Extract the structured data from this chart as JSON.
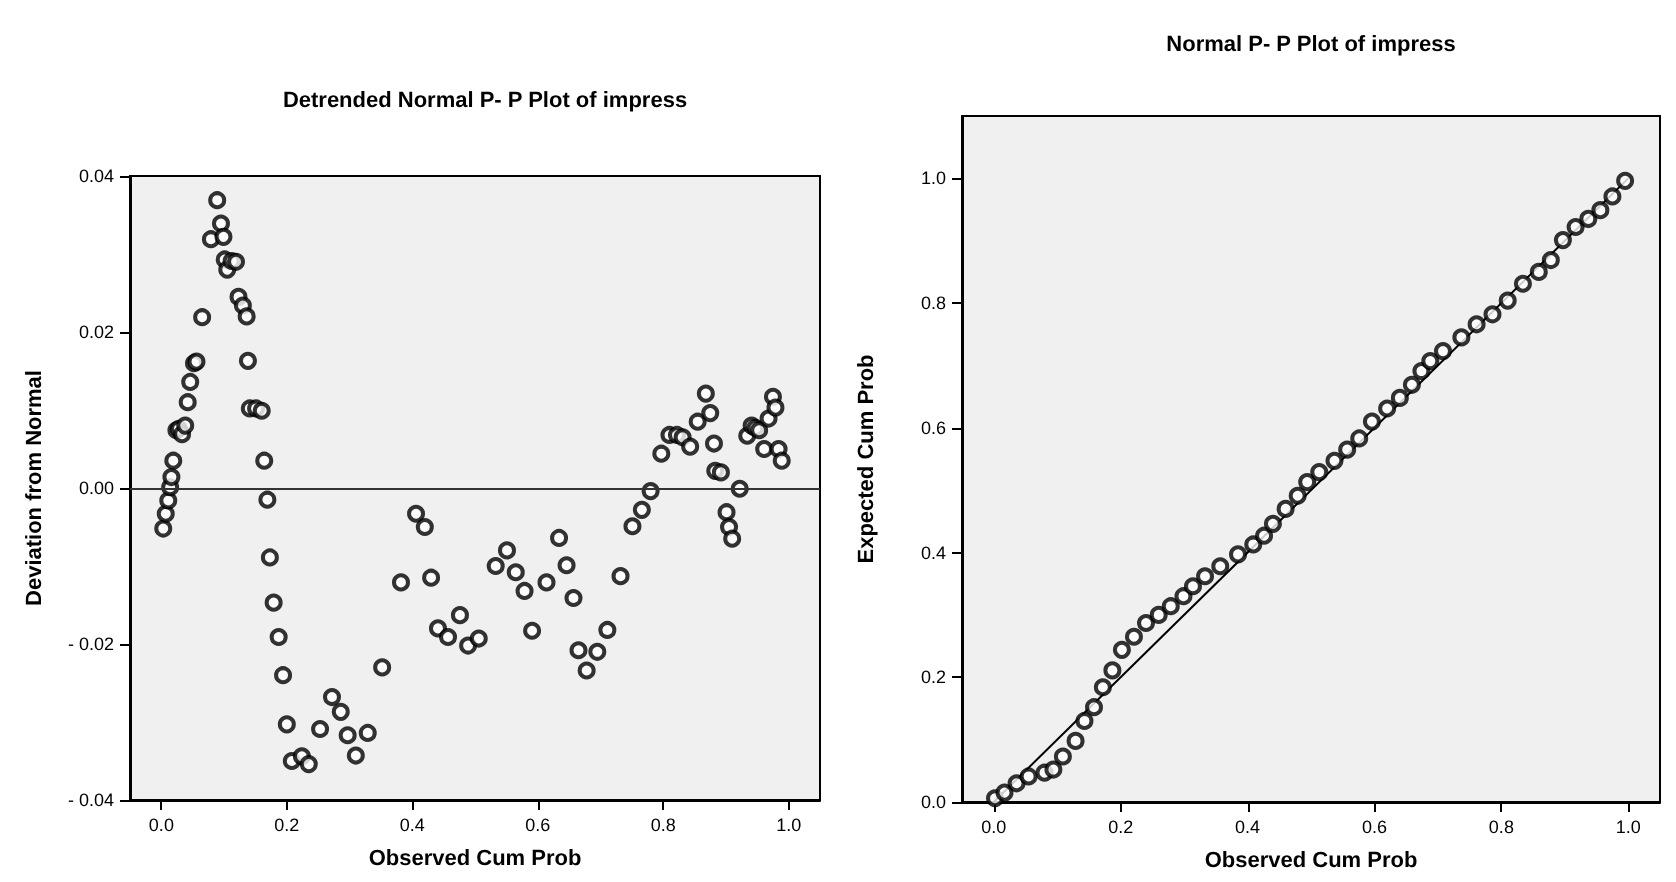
{
  "chart_data": [
    {
      "type": "scatter",
      "title": "Detrended Normal P- P Plot of impress",
      "xlabel": "Observed Cum Prob",
      "ylabel": "Deviation from Normal",
      "xlim": [
        -0.05,
        1.05
      ],
      "ylim": [
        -0.04,
        0.04
      ],
      "xticks": [
        {
          "value": 0,
          "label": "0.0"
        },
        {
          "value": 0.2,
          "label": "0.2"
        },
        {
          "value": 0.4,
          "label": "0.4"
        },
        {
          "value": 0.6,
          "label": "0.6"
        },
        {
          "value": 0.8,
          "label": "0.8"
        },
        {
          "value": 1,
          "label": "1.0"
        }
      ],
      "yticks": [
        {
          "value": -0.04,
          "label": "- 0.04"
        },
        {
          "value": -0.02,
          "label": "- 0.02"
        },
        {
          "value": 0,
          "label": "0.00"
        },
        {
          "value": 0.02,
          "label": "0.02"
        },
        {
          "value": 0.04,
          "label": "0.04"
        }
      ],
      "grid": false,
      "marker": "circle",
      "ref_lines": [
        {
          "axis": "y",
          "value": 0,
          "color": "#333333"
        }
      ],
      "series": [
        {
          "color": "#000000",
          "x": [
            0.003,
            0.007,
            0.011,
            0.014,
            0.016,
            0.019,
            0.024,
            0.028,
            0.033,
            0.038,
            0.042,
            0.046,
            0.052,
            0.056,
            0.065,
            0.079,
            0.089,
            0.095,
            0.099,
            0.101,
            0.105,
            0.112,
            0.119,
            0.123,
            0.13,
            0.136,
            0.138,
            0.141,
            0.151,
            0.16,
            0.164,
            0.169,
            0.173,
            0.179,
            0.187,
            0.194,
            0.2,
            0.208,
            0.224,
            0.235,
            0.253,
            0.272,
            0.286,
            0.297,
            0.31,
            0.329,
            0.352,
            0.382,
            0.406,
            0.42,
            0.43,
            0.441,
            0.457,
            0.476,
            0.489,
            0.506,
            0.533,
            0.551,
            0.565,
            0.579,
            0.591,
            0.614,
            0.634,
            0.646,
            0.657,
            0.665,
            0.678,
            0.695,
            0.711,
            0.732,
            0.751,
            0.766,
            0.78,
            0.797,
            0.81,
            0.822,
            0.831,
            0.843,
            0.855,
            0.868,
            0.875,
            0.881,
            0.883,
            0.892,
            0.901,
            0.905,
            0.91,
            0.922,
            0.934,
            0.941,
            0.947,
            0.953,
            0.961,
            0.968,
            0.975,
            0.979,
            0.984,
            0.989
          ],
          "values": [
            -0.0052,
            -0.0033,
            -0.0016,
            0.0001,
            0.0014,
            0.0035,
            0.0074,
            0.0076,
            0.0069,
            0.008,
            0.011,
            0.0136,
            0.016,
            0.0162,
            0.0219,
            0.0319,
            0.0369,
            0.0339,
            0.0322,
            0.0293,
            0.028,
            0.0291,
            0.029,
            0.0245,
            0.0234,
            0.022,
            0.0163,
            0.0102,
            0.0102,
            0.0099,
            0.0035,
            -0.0015,
            -0.0089,
            -0.0147,
            -0.0191,
            -0.024,
            -0.0303,
            -0.035,
            -0.0344,
            -0.0354,
            -0.0309,
            -0.0268,
            -0.0287,
            -0.0317,
            -0.0343,
            -0.0314,
            -0.023,
            -0.0121,
            -0.0033,
            -0.005,
            -0.0115,
            -0.018,
            -0.0191,
            -0.0163,
            -0.0202,
            -0.0193,
            -0.01,
            -0.008,
            -0.0108,
            -0.0132,
            -0.0183,
            -0.0121,
            -0.0064,
            -0.0099,
            -0.0141,
            -0.0208,
            -0.0234,
            -0.021,
            -0.0182,
            -0.0113,
            -0.0049,
            -0.0028,
            -0.0004,
            0.0044,
            0.0068,
            0.0068,
            0.0065,
            0.0053,
            0.0085,
            0.0121,
            0.0096,
            0.0057,
            0.0022,
            0.002,
            -0.0031,
            -0.005,
            -0.0065,
            -0.0001,
            0.0067,
            0.008,
            0.0077,
            0.0074,
            0.005,
            0.0089,
            0.0117,
            0.0103,
            0.005,
            0.0035
          ]
        }
      ]
    },
    {
      "type": "scatter",
      "title": "Normal P- P Plot of impress",
      "xlabel": "Observed Cum Prob",
      "ylabel": "Expected Cum Prob",
      "xlim": [
        -0.05,
        1.05
      ],
      "ylim": [
        0,
        1.1
      ],
      "xticks": [
        {
          "value": 0,
          "label": "0.0"
        },
        {
          "value": 0.2,
          "label": "0.2"
        },
        {
          "value": 0.4,
          "label": "0.4"
        },
        {
          "value": 0.6,
          "label": "0.6"
        },
        {
          "value": 0.8,
          "label": "0.8"
        },
        {
          "value": 1,
          "label": "1.0"
        }
      ],
      "yticks": [
        {
          "value": 0,
          "label": "0.0"
        },
        {
          "value": 0.2,
          "label": "0.2"
        },
        {
          "value": 0.4,
          "label": "0.4"
        },
        {
          "value": 0.6,
          "label": "0.6"
        },
        {
          "value": 0.8,
          "label": "0.8"
        },
        {
          "value": 1,
          "label": "1.0"
        }
      ],
      "grid": false,
      "marker": "circle",
      "series": [
        {
          "type": "line",
          "color": "#000000",
          "marker": "none",
          "x": [
            0,
            1
          ],
          "values": [
            0,
            1
          ]
        },
        {
          "color": "#000000",
          "x": [
            0.002,
            0.017,
            0.036,
            0.055,
            0.08,
            0.094,
            0.109,
            0.129,
            0.143,
            0.158,
            0.172,
            0.187,
            0.202,
            0.221,
            0.24,
            0.26,
            0.279,
            0.299,
            0.314,
            0.333,
            0.357,
            0.385,
            0.409,
            0.426,
            0.44,
            0.46,
            0.479,
            0.494,
            0.513,
            0.537,
            0.557,
            0.576,
            0.596,
            0.62,
            0.64,
            0.659,
            0.674,
            0.688,
            0.708,
            0.737,
            0.761,
            0.786,
            0.81,
            0.834,
            0.859,
            0.878,
            0.897,
            0.917,
            0.937,
            0.956,
            0.975,
            0.995
          ],
          "values": [
            0.006,
            0.015,
            0.03,
            0.041,
            0.047,
            0.052,
            0.073,
            0.098,
            0.13,
            0.152,
            0.184,
            0.211,
            0.244,
            0.265,
            0.287,
            0.3,
            0.314,
            0.33,
            0.346,
            0.362,
            0.378,
            0.397,
            0.413,
            0.427,
            0.446,
            0.47,
            0.491,
            0.513,
            0.529,
            0.547,
            0.565,
            0.583,
            0.61,
            0.631,
            0.648,
            0.669,
            0.691,
            0.707,
            0.723,
            0.745,
            0.766,
            0.782,
            0.804,
            0.831,
            0.85,
            0.869,
            0.901,
            0.922,
            0.935,
            0.949,
            0.971,
            0.996
          ]
        }
      ]
    }
  ]
}
